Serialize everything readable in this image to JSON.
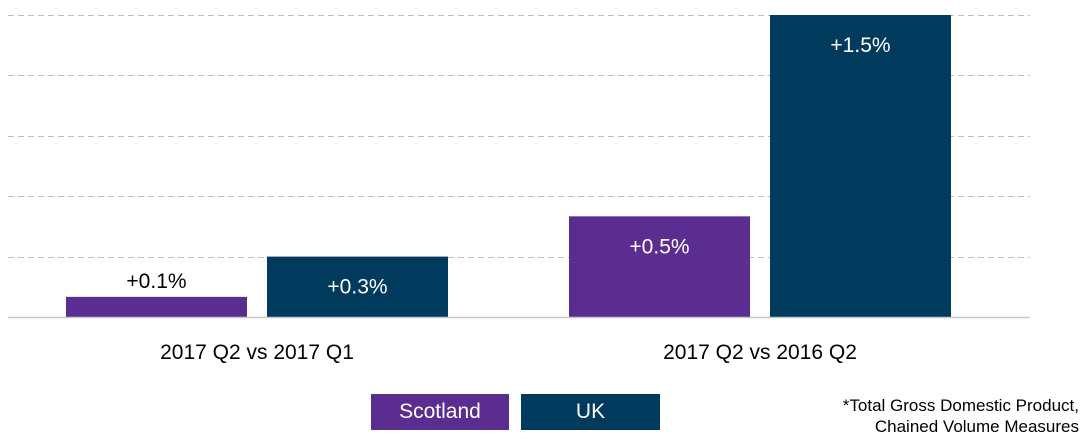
{
  "chart_data": {
    "type": "bar",
    "categories": [
      "2017 Q2 vs 2017 Q1",
      "2017 Q2 vs 2016 Q2"
    ],
    "series": [
      {
        "name": "Scotland",
        "values": [
          0.1,
          0.5
        ],
        "labels": [
          "+0.1%",
          "+0.5%"
        ],
        "color": "#5c2d91"
      },
      {
        "name": "UK",
        "values": [
          0.3,
          1.5
        ],
        "labels": [
          "+0.3%",
          "+1.5%"
        ],
        "color": "#003a5d"
      }
    ],
    "ylim": [
      0,
      1.5
    ],
    "grid": true,
    "legend": "bottom",
    "footnote": [
      "*Total Gross Domestic Product,",
      "Chained Volume Measures"
    ]
  }
}
